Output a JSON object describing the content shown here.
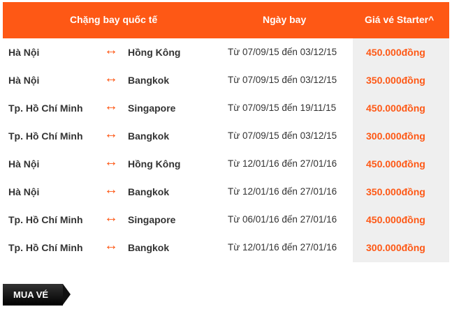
{
  "header": {
    "route": "Chặng bay quốc tế",
    "date": "Ngày bay",
    "price": "Giá vé Starter^"
  },
  "rows": [
    {
      "origin": "Hà Nội",
      "dest": "Hồng Kông",
      "date": "Từ 07/09/15 đến 03/12/15",
      "price": "450.000đồng"
    },
    {
      "origin": "Hà Nội",
      "dest": "Bangkok",
      "date": "Từ 07/09/15 đến 03/12/15",
      "price": "350.000đồng"
    },
    {
      "origin": "Tp. Hồ Chí Minh",
      "dest": "Singapore",
      "date": "Từ 07/09/15 đến 19/11/15",
      "price": "450.000đồng"
    },
    {
      "origin": "Tp. Hồ Chí Minh",
      "dest": "Bangkok",
      "date": "Từ 07/09/15 đến 03/12/15",
      "price": "300.000đồng"
    },
    {
      "origin": "Hà Nội",
      "dest": "Hồng Kông",
      "date": "Từ 12/01/16 đến 27/01/16",
      "price": "450.000đồng"
    },
    {
      "origin": "Hà Nội",
      "dest": "Bangkok",
      "date": "Từ 12/01/16 đến 27/01/16",
      "price": "350.000đồng"
    },
    {
      "origin": "Tp. Hồ Chí Minh",
      "dest": "Singapore",
      "date": "Từ 06/01/16 đến 27/01/16",
      "price": "450.000đồng"
    },
    {
      "origin": "Tp. Hồ Chí Minh",
      "dest": "Bangkok",
      "date": "Từ 12/01/16 đến 27/01/16",
      "price": "300.000đồng"
    }
  ],
  "button": {
    "label": "MUA VÉ"
  },
  "icons": {
    "route": "left-right-arrow-icon"
  },
  "colors": {
    "accent": "#fe5815",
    "price_bg": "#efefef"
  }
}
